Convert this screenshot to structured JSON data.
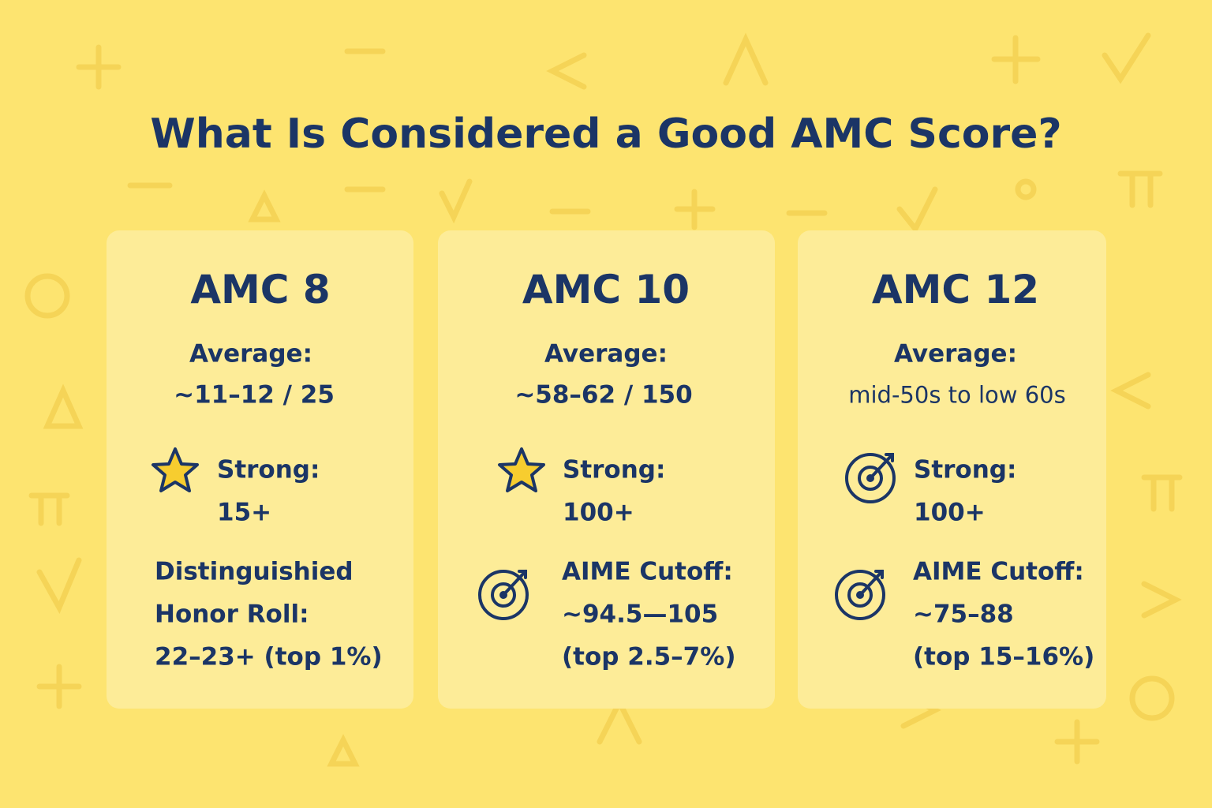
{
  "header": {
    "title": "What Is Considered a Good AMC Score?"
  },
  "cards": [
    {
      "title": "AMC 8",
      "average": {
        "label": "Average:",
        "value": "~11–12 / 25"
      },
      "items": [
        {
          "lines": [
            "Strong:",
            "15+"
          ]
        },
        {
          "lines": [
            "Distinguishied",
            "Honor Roll:",
            "22–23+ (top 1%)"
          ]
        }
      ]
    },
    {
      "title": "AMC 10",
      "average": {
        "label": "Average:",
        "value": "~58–62 / 150"
      },
      "items": [
        {
          "lines": [
            "Strong:",
            "100+"
          ]
        },
        {
          "lines": [
            "AIME Cutoff:",
            "~94.5—105",
            "(top 2.5–7%)"
          ]
        }
      ]
    },
    {
      "title": "AMC 12",
      "average": {
        "label": "Average:",
        "value": "mid-50s to low 60s"
      },
      "items": [
        {
          "lines": [
            "Strong:",
            "100+"
          ]
        },
        {
          "lines": [
            "AIME Cutoff:",
            "~75–88",
            "(top 15–16%)"
          ]
        }
      ]
    }
  ]
}
